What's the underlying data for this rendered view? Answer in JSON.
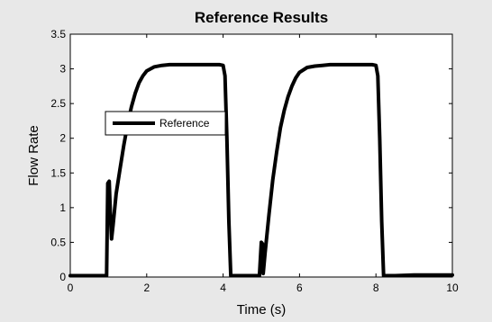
{
  "chart_data": {
    "type": "line",
    "title": "Reference Results",
    "xlabel": "Time (s)",
    "ylabel": "Flow Rate",
    "xlim": [
      0,
      10
    ],
    "ylim": [
      0,
      3.5
    ],
    "xticks": [
      0,
      2,
      4,
      6,
      8,
      10
    ],
    "xtick_labels": [
      "0",
      "2",
      "4",
      "6",
      "8",
      "10"
    ],
    "yticks": [
      0,
      0.5,
      1,
      1.5,
      2,
      2.5,
      3,
      3.5
    ],
    "ytick_labels": [
      "0",
      "0.5",
      "1",
      "1.5",
      "2",
      "2.5",
      "3",
      "3.5"
    ],
    "grid": false,
    "legend": {
      "position": "upper-left"
    },
    "series": [
      {
        "name": "Reference",
        "color": "#000000",
        "x": [
          0,
          0.95,
          0.98,
          1.02,
          1.05,
          1.08,
          1.12,
          1.2,
          1.3,
          1.4,
          1.5,
          1.6,
          1.7,
          1.8,
          1.9,
          2.0,
          2.2,
          2.4,
          2.6,
          2.8,
          3.0,
          3.3,
          3.6,
          3.9,
          4.0,
          4.05,
          4.1,
          4.15,
          4.2,
          4.5,
          4.95,
          5.0,
          5.03,
          5.05,
          5.1,
          5.2,
          5.3,
          5.4,
          5.5,
          5.6,
          5.7,
          5.8,
          5.9,
          6.0,
          6.2,
          6.4,
          6.6,
          6.8,
          7.0,
          7.3,
          7.6,
          7.9,
          8.0,
          8.05,
          8.1,
          8.15,
          8.2,
          8.5,
          9.0,
          10.0
        ],
        "y": [
          0.02,
          0.02,
          1.35,
          1.38,
          0.9,
          0.55,
          0.75,
          1.2,
          1.55,
          1.9,
          2.2,
          2.45,
          2.65,
          2.8,
          2.9,
          2.97,
          3.03,
          3.05,
          3.06,
          3.06,
          3.06,
          3.06,
          3.06,
          3.06,
          3.05,
          2.9,
          2.0,
          0.8,
          0.02,
          0.02,
          0.02,
          0.5,
          0.48,
          0.05,
          0.35,
          0.9,
          1.4,
          1.8,
          2.15,
          2.4,
          2.6,
          2.75,
          2.87,
          2.95,
          3.02,
          3.04,
          3.05,
          3.06,
          3.06,
          3.06,
          3.06,
          3.06,
          3.05,
          2.9,
          2.0,
          0.8,
          0.02,
          0.02,
          0.03,
          0.03
        ]
      }
    ]
  }
}
